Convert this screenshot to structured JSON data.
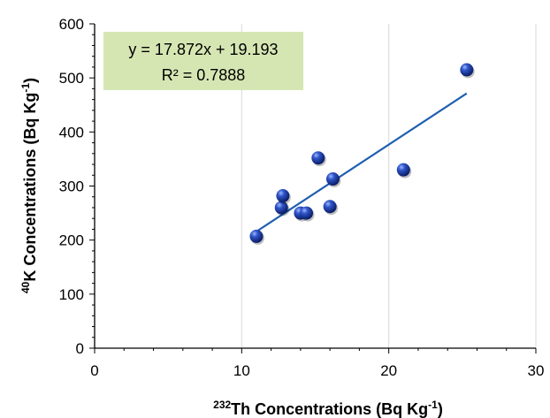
{
  "chart_data": {
    "type": "scatter",
    "xlabel": {
      "sup1": "232",
      "main": "Th Concentrations (Bq Kg",
      "sup2": "-1",
      "end": ")"
    },
    "ylabel": {
      "sup1": "40",
      "main": "K Concentrations  (Bq Kg",
      "sup2": "-1",
      "end": ")"
    },
    "xlim": [
      0,
      30
    ],
    "ylim": [
      0,
      600
    ],
    "xticks": [
      0,
      10,
      20,
      30
    ],
    "yticks": [
      0,
      100,
      200,
      300,
      400,
      500,
      600
    ],
    "grid": {
      "vertical": true,
      "horizontal": false
    },
    "points": [
      {
        "x": 11.0,
        "y": 207
      },
      {
        "x": 12.7,
        "y": 260
      },
      {
        "x": 12.8,
        "y": 282
      },
      {
        "x": 14.0,
        "y": 250
      },
      {
        "x": 14.4,
        "y": 250
      },
      {
        "x": 15.2,
        "y": 352
      },
      {
        "x": 16.0,
        "y": 262
      },
      {
        "x": 16.2,
        "y": 313
      },
      {
        "x": 21.0,
        "y": 330
      },
      {
        "x": 25.3,
        "y": 515
      }
    ],
    "trendline": {
      "type": "linear",
      "slope": 17.872,
      "intercept": 19.193,
      "x_from": 11.0,
      "x_to": 25.3
    },
    "annotation": {
      "equation": "y = 17.872x + 19.193",
      "r_squared": "R² = 0.7888",
      "background": "#d6e6b3"
    },
    "colors": {
      "marker": "#1f3f9e",
      "trendline": "#1f5fb0",
      "grid": "#d9d9d9"
    }
  }
}
